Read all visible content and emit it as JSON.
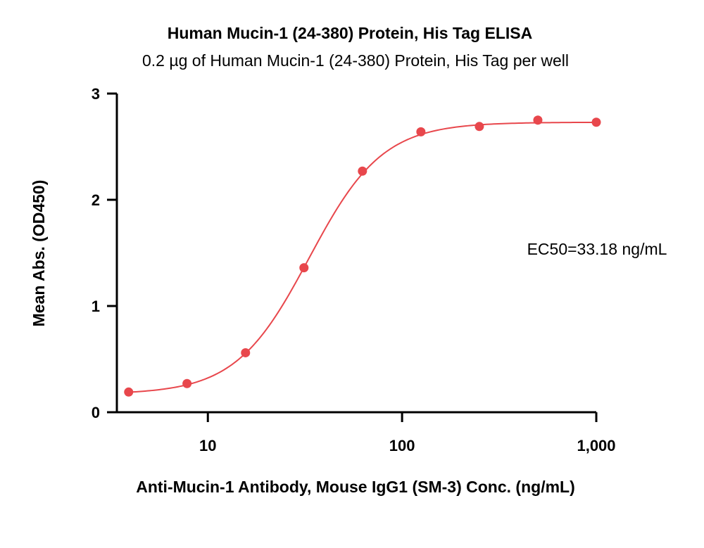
{
  "chart_data": {
    "type": "scatter",
    "title": "Human Mucin-1 (24-380) Protein, His Tag ELISA",
    "subtitle": "0.2 µg of Human Mucin-1 (24-380) Protein, His Tag per well",
    "xlabel": "Anti-Mucin-1 Antibody, Mouse IgG1 (SM-3) Conc. (ng/mL)",
    "ylabel": "Mean Abs. (OD450)",
    "x_scale": "log",
    "xlim": [
      3.4,
      1000
    ],
    "ylim": [
      0,
      3
    ],
    "x_ticks": [
      10,
      100,
      1000
    ],
    "x_tick_labels": [
      "10",
      "100",
      "1,000"
    ],
    "y_ticks": [
      0,
      1,
      2,
      3
    ],
    "y_tick_labels": [
      "0",
      "1",
      "2",
      "3"
    ],
    "grid": false,
    "annotation": "EC50=33.18 ng/mL",
    "series": [
      {
        "color": "#e8474c",
        "x": [
          3.91,
          7.81,
          15.63,
          31.25,
          62.5,
          125,
          250,
          500,
          1000
        ],
        "y": [
          0.19,
          0.27,
          0.56,
          1.36,
          2.27,
          2.64,
          2.69,
          2.75,
          2.73
        ],
        "fit": {
          "bottom": 0.17,
          "top": 2.73,
          "ec50": 33.18,
          "hill": 2.3
        }
      }
    ]
  }
}
